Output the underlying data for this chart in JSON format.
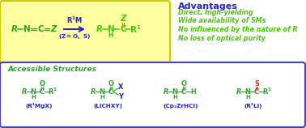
{
  "bg_color": "#ffffff",
  "top_box_color": "#fffff00",
  "top_box_facecolor": "#fefea0",
  "top_box_border": "#cccc00",
  "bottom_box_color": "#ffffff",
  "bottom_box_border": "#4444bb",
  "green_mol": "#22aa22",
  "green_bright": "#44cc00",
  "blue_arrow": "#2222cc",
  "blue_label": "#2222cc",
  "red_s": "#ee3300",
  "advantages_title": "Advantages",
  "advantages_lines": [
    "Direct, high-yielding",
    "Wide availability of SMs",
    "No influenced by the nature of R",
    "No loss of optical purity"
  ],
  "accessible_title": "Accessible Structures",
  "struct_labels": [
    "(R¹MgX)",
    "(LiCHXY)",
    "(Cp₂ZrHCl)",
    "(R¹Li)"
  ]
}
